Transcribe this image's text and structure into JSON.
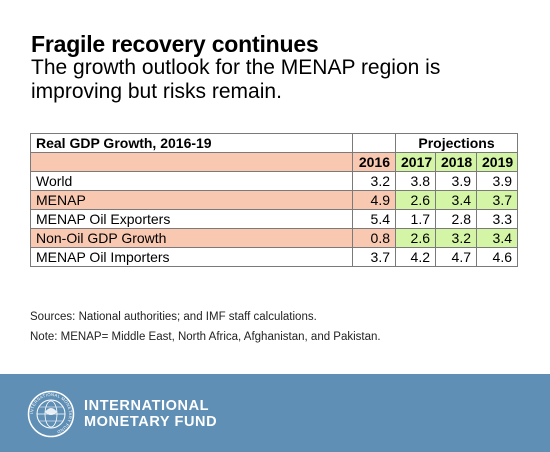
{
  "header": {
    "title": "Fragile recovery continues",
    "subtitle": "The growth outlook for the MENAP region is improving but risks remain."
  },
  "chart_data": {
    "type": "table",
    "title": "Real GDP Growth, 2016-19",
    "group_header": "Projections",
    "columns": [
      "2016",
      "2017",
      "2018",
      "2019"
    ],
    "rows": [
      {
        "label": "World",
        "values": [
          "3.2",
          "3.8",
          "3.9",
          "3.9"
        ]
      },
      {
        "label": "MENAP",
        "values": [
          "4.9",
          "2.6",
          "3.4",
          "3.7"
        ]
      },
      {
        "label": "MENAP Oil Exporters",
        "values": [
          "5.4",
          "1.7",
          "2.8",
          "3.3"
        ]
      },
      {
        "label": "Non-Oil GDP Growth",
        "values": [
          "0.8",
          "2.6",
          "3.2",
          "3.4"
        ]
      },
      {
        "label": "MENAP Oil Importers",
        "values": [
          "3.7",
          "4.2",
          "4.7",
          "4.6"
        ]
      }
    ]
  },
  "notes": {
    "sources": "Sources: National authorities; and IMF staff calculations.",
    "note": "Note: MENAP= Middle East, North Africa, Afghanistan, and Pakistan."
  },
  "footer": {
    "org_line1": "INTERNATIONAL",
    "org_line2": "MONETARY FUND",
    "seal_text": "INTERNATIONAL MONETARY FUND",
    "colors": {
      "band": "#5f8fb5",
      "highlight": "#f8c8b1",
      "projection": "#d5f5a6"
    }
  }
}
